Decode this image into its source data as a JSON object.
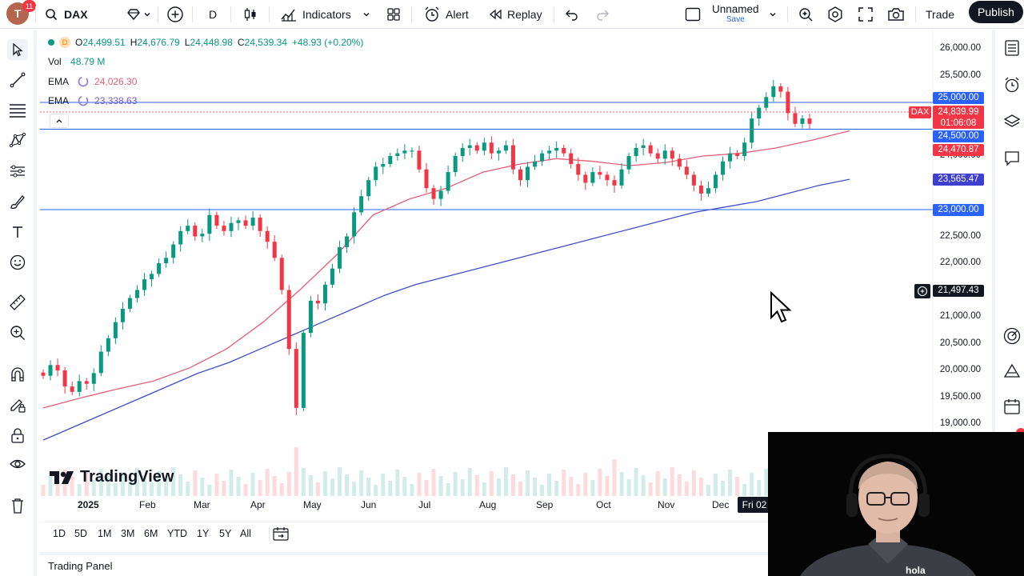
{
  "topbar": {
    "avatar_letter": "T",
    "notifications": "11",
    "symbol": "DAX",
    "interval": "D",
    "indicators_label": "Indicators",
    "alert_label": "Alert",
    "replay_label": "Replay",
    "layout_name": "Unnamed",
    "layout_save": "Save",
    "trade_label": "Trade",
    "publish_label": "Publish"
  },
  "legend": {
    "interval": "D",
    "open_label": "O",
    "open": "24,499.51",
    "high_label": "H",
    "high": "24,676.79",
    "low_label": "L",
    "low": "24,448.98",
    "close_label": "C",
    "close": "24,539.34",
    "change": "+48.93 (+0.20%)",
    "vol_label": "Vol",
    "vol": "48.79 M",
    "ema1_label": "EMA",
    "ema1": "24,026.30",
    "ema2_label": "EMA",
    "ema2": "23,338.63"
  },
  "price_axis": {
    "labels": [
      "26,000.00",
      "25,500.00",
      "25,000.00",
      "24,500.00",
      "24,000.00",
      "23,500.00",
      "23,000.00",
      "22,500.00",
      "22,000.00",
      "21,500.00",
      "21,000.00",
      "20,500.00",
      "20,000.00",
      "19,500.00",
      "19,000.00"
    ],
    "tags": {
      "line_25000": "25,000.00",
      "symbol": "DAX",
      "last_price": "24,839.99",
      "countdown": "01:06:08",
      "line_24500": "24,500.00",
      "ema1": "24,470.87",
      "ema2": "23,565.47",
      "line_23000": "23,000.00",
      "crosshair": "21,497.43"
    }
  },
  "time_axis": {
    "labels": [
      "2025",
      "Feb",
      "Mar",
      "Apr",
      "May",
      "Jun",
      "Jul",
      "Aug",
      "Sep",
      "Oct",
      "Nov",
      "Dec"
    ],
    "cursor_label": "Fri 02"
  },
  "watermark": "TradingView",
  "ranges": [
    "1D",
    "5D",
    "1M",
    "3M",
    "6M",
    "YTD",
    "1Y",
    "5Y",
    "All"
  ],
  "trading_panel": "Trading Panel",
  "webcam": {
    "shirt_text": "hola"
  },
  "chart_data": {
    "type": "candlestick",
    "symbol": "DAX",
    "interval": "D",
    "ylim": [
      18800,
      26200
    ],
    "grid": false,
    "horizontal_lines": [
      25000,
      24500,
      23000
    ],
    "colors": {
      "up": "#089981",
      "down": "#f23645",
      "ema1": "#e35f77",
      "ema2": "#3f4fc9",
      "hline": "#2962ff"
    },
    "closes": [
      19900,
      20100,
      20000,
      19700,
      19600,
      19800,
      19750,
      19950,
      20350,
      20600,
      20900,
      21150,
      21350,
      21500,
      21700,
      21800,
      22000,
      22100,
      22350,
      22600,
      22700,
      22500,
      22550,
      22900,
      22700,
      22600,
      22750,
      22800,
      22700,
      22850,
      22600,
      22400,
      22100,
      21500,
      20400,
      19300,
      20700,
      21300,
      21250,
      21600,
      21900,
      22300,
      22500,
      22950,
      23250,
      23550,
      23800,
      23850,
      24000,
      24050,
      24100,
      24100,
      23750,
      23400,
      23200,
      23350,
      23700,
      24000,
      24150,
      24200,
      24100,
      24250,
      24050,
      24100,
      24200,
      23750,
      23550,
      23800,
      23900,
      24050,
      24100,
      24150,
      24050,
      23850,
      23650,
      23500,
      23700,
      23650,
      23550,
      23450,
      23750,
      24000,
      24150,
      24200,
      24050,
      23950,
      24100,
      23950,
      23800,
      23650,
      23450,
      23300,
      23400,
      23650,
      23900,
      24050,
      24000,
      24250,
      24700,
      24900,
      25100,
      25300,
      25200,
      24800,
      24600,
      24700,
      24600
    ],
    "ema1": [
      19300,
      19480,
      19650,
      19800,
      20050,
      20400,
      20900,
      21500,
      22150,
      22900,
      23200,
      23400,
      23700,
      23850,
      23950,
      23900,
      23820,
      23880,
      24000,
      24050,
      24150,
      24300,
      24470
    ],
    "ema2": [
      18700,
      18950,
      19200,
      19450,
      19700,
      19950,
      20150,
      20400,
      20650,
      20900,
      21150,
      21400,
      21600,
      21750,
      21900,
      22050,
      22200,
      22350,
      22500,
      22650,
      22800,
      22950,
      23050,
      23150,
      23300,
      23450,
      23565
    ]
  }
}
